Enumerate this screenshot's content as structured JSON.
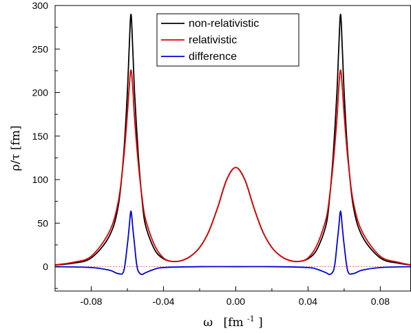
{
  "chart_data": {
    "type": "line",
    "title": "",
    "xlabel_main": "ω",
    "xlabel_unit_open": "[fm",
    "xlabel_unit_sup": "-1",
    "xlabel_unit_close": "]",
    "ylabel": "ρ/τ  [fm]",
    "xlim": [
      -0.1,
      0.097
    ],
    "ylim": [
      -28,
      300
    ],
    "x_ticks": [
      -0.08,
      -0.04,
      0.0,
      0.04,
      0.08
    ],
    "x_tick_labels": [
      "-0.08",
      "-0.04",
      "0.00",
      "0.04",
      "0.08"
    ],
    "y_ticks": [
      0,
      50,
      100,
      150,
      200,
      250,
      300
    ],
    "y_tick_labels": [
      "0",
      "50",
      "100",
      "150",
      "200",
      "250",
      "300"
    ],
    "grid": false,
    "legend_position": "top-center",
    "series": [
      {
        "name": "non-relativistic",
        "color": "#000000",
        "x": [
          -0.1,
          -0.09,
          -0.08,
          -0.07,
          -0.065,
          -0.062,
          -0.06,
          -0.059,
          -0.058,
          -0.057,
          -0.056,
          -0.054,
          -0.052,
          -0.05,
          -0.045,
          -0.04,
          -0.035,
          -0.03,
          -0.025,
          -0.02,
          -0.015,
          -0.01,
          -0.005,
          0.0,
          0.005,
          0.01,
          0.015,
          0.02,
          0.025,
          0.03,
          0.035,
          0.04,
          0.045,
          0.05,
          0.052,
          0.054,
          0.056,
          0.057,
          0.058,
          0.059,
          0.06,
          0.062,
          0.065,
          0.07,
          0.08,
          0.09,
          0.097
        ],
        "y": [
          2,
          4,
          10,
          35,
          70,
          130,
          200,
          250,
          290,
          250,
          200,
          130,
          80,
          48,
          20,
          9,
          6,
          7,
          12,
          22,
          40,
          68,
          100,
          114,
          100,
          68,
          40,
          22,
          12,
          7,
          6,
          9,
          20,
          48,
          80,
          130,
          200,
          250,
          290,
          250,
          200,
          130,
          70,
          35,
          10,
          4,
          2
        ]
      },
      {
        "name": "relativistic",
        "color": "#e00000",
        "x": [
          -0.1,
          -0.09,
          -0.08,
          -0.07,
          -0.065,
          -0.062,
          -0.06,
          -0.059,
          -0.058,
          -0.057,
          -0.056,
          -0.054,
          -0.052,
          -0.05,
          -0.045,
          -0.04,
          -0.035,
          -0.03,
          -0.025,
          -0.02,
          -0.015,
          -0.01,
          -0.005,
          0.0,
          0.005,
          0.01,
          0.015,
          0.02,
          0.025,
          0.03,
          0.035,
          0.04,
          0.045,
          0.05,
          0.052,
          0.054,
          0.056,
          0.057,
          0.058,
          0.059,
          0.06,
          0.062,
          0.065,
          0.07,
          0.08,
          0.09,
          0.097
        ],
        "y": [
          2,
          5,
          12,
          40,
          75,
          125,
          175,
          205,
          226,
          205,
          170,
          120,
          82,
          55,
          25,
          10,
          6,
          7,
          12,
          22,
          40,
          68,
          100,
          114,
          100,
          68,
          40,
          22,
          12,
          7,
          6,
          10,
          25,
          55,
          82,
          120,
          170,
          205,
          226,
          205,
          175,
          125,
          75,
          40,
          12,
          5,
          2
        ]
      },
      {
        "name": "difference",
        "color": "#0000dd",
        "x": [
          -0.1,
          -0.08,
          -0.07,
          -0.065,
          -0.062,
          -0.06,
          -0.059,
          -0.058,
          -0.057,
          -0.056,
          -0.055,
          -0.054,
          -0.052,
          -0.05,
          -0.045,
          -0.04,
          -0.02,
          0.0,
          0.02,
          0.04,
          0.045,
          0.05,
          0.052,
          0.054,
          0.055,
          0.056,
          0.057,
          0.058,
          0.059,
          0.06,
          0.062,
          0.065,
          0.07,
          0.08,
          0.097
        ],
        "y": [
          0,
          -1,
          -4,
          -8,
          -5,
          25,
          45,
          64,
          45,
          25,
          5,
          -5,
          -9,
          -7,
          -3,
          -1,
          0,
          0,
          0,
          -1,
          -3,
          -7,
          -9,
          -5,
          5,
          25,
          45,
          64,
          45,
          25,
          -5,
          -8,
          -4,
          -1,
          0
        ]
      }
    ]
  }
}
